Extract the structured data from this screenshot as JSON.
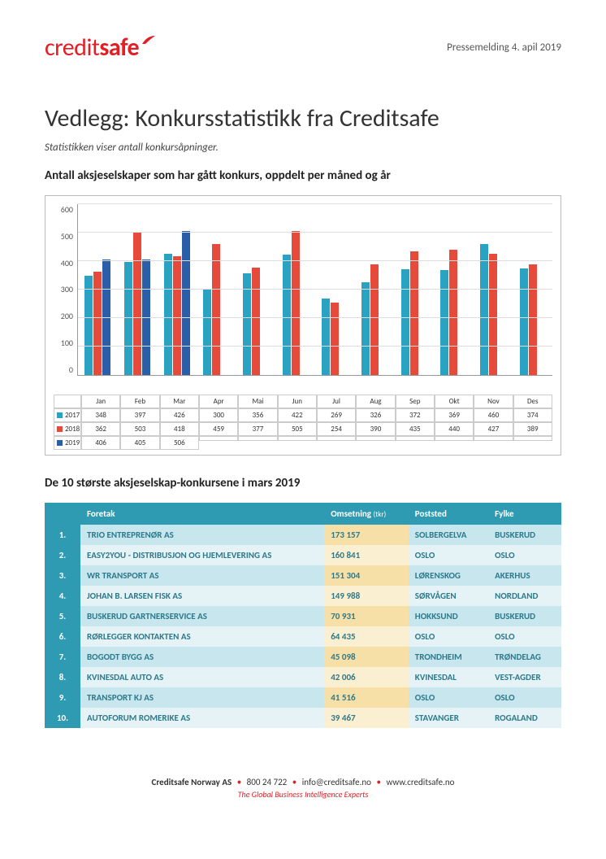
{
  "header": {
    "logo_a": "credit",
    "logo_b": "safe",
    "press_date": "Pressemelding 4. apil 2019"
  },
  "title": "Vedlegg: Konkursstatistikk fra Creditsafe",
  "subtitle": "Statistikken viser antall konkursåpninger.",
  "chart": {
    "heading": "Antall aksjeselskaper som har gått konkurs, oppdelt per måned og år",
    "type": "bar",
    "y_max": 600,
    "y_ticks": [
      600,
      500,
      400,
      300,
      200,
      100,
      0
    ],
    "months": [
      "Jan",
      "Feb",
      "Mar",
      "Apr",
      "Mai",
      "Jun",
      "Jul",
      "Aug",
      "Sep",
      "Okt",
      "Nov",
      "Des"
    ],
    "series": [
      {
        "name": "2017",
        "color": "#2aa3c2",
        "values": [
          348,
          397,
          426,
          300,
          356,
          422,
          269,
          326,
          372,
          369,
          460,
          374
        ]
      },
      {
        "name": "2018",
        "color": "#e64a3b",
        "values": [
          362,
          503,
          418,
          459,
          377,
          505,
          254,
          390,
          435,
          440,
          427,
          389
        ]
      },
      {
        "name": "2019",
        "color": "#2b5ea8",
        "values": [
          406,
          405,
          506,
          null,
          null,
          null,
          null,
          null,
          null,
          null,
          null,
          null
        ]
      }
    ],
    "grid_color": "#dddddd",
    "tick_font_size": 10
  },
  "companies": {
    "heading": "De 10 største aksjeselskap-konkursene i mars 2019",
    "columns": [
      "",
      "Foretak",
      "Omsetning",
      "Poststed",
      "Fylke"
    ],
    "omsetning_suffix": "(tkr)",
    "rows": [
      {
        "rank": "1.",
        "name": "TRIO ENTREPRENØR AS",
        "rev": "173 157",
        "post": "SOLBERGELVA",
        "fylke": "BUSKERUD"
      },
      {
        "rank": "2.",
        "name": "EASY2YOU - DISTRIBUSJON OG HJEMLEVERING AS",
        "rev": "160 841",
        "post": "OSLO",
        "fylke": "OSLO"
      },
      {
        "rank": "3.",
        "name": "WR TRANSPORT AS",
        "rev": "151 304",
        "post": "LØRENSKOG",
        "fylke": "AKERHUS"
      },
      {
        "rank": "4.",
        "name": "JOHAN B. LARSEN FISK AS",
        "rev": "149 988",
        "post": "SØRVÅGEN",
        "fylke": "NORDLAND"
      },
      {
        "rank": "5.",
        "name": "BUSKERUD GARTNERSERVICE AS",
        "rev": "70 931",
        "post": "HOKKSUND",
        "fylke": "BUSKERUD"
      },
      {
        "rank": "6.",
        "name": "RØRLEGGER KONTAKTEN AS",
        "rev": "64 435",
        "post": "OSLO",
        "fylke": "OSLO"
      },
      {
        "rank": "7.",
        "name": "BOGODT BYGG AS",
        "rev": "45 098",
        "post": "TRONDHEIM",
        "fylke": "TRØNDELAG"
      },
      {
        "rank": "8.",
        "name": "KVINESDAL AUTO AS",
        "rev": "42 006",
        "post": "KVINESDAL",
        "fylke": "VEST-AGDER"
      },
      {
        "rank": "9.",
        "name": "TRANSPORT KJ AS",
        "rev": "41 516",
        "post": "OSLO",
        "fylke": "OSLO"
      },
      {
        "rank": "10.",
        "name": "AUTOFORUM ROMERIKE AS",
        "rev": "39 467",
        "post": "STAVANGER",
        "fylke": "ROGALAND"
      }
    ],
    "header_bg": "#2e9bb3",
    "row_odd_bg": "#c7e6ee",
    "row_even_bg": "#e5f3f7",
    "rev_odd_bg": "#f6e0a8",
    "rev_even_bg": "#faefd0",
    "text_color": "#2e7a8a"
  },
  "footer": {
    "line1_a": "Creditsafe Norway AS",
    "line1_b": "800 24 722",
    "line1_c": "info@creditsafe.no",
    "line1_d": "www.creditsafe.no",
    "tagline": "The Global Business Intelligence Experts"
  }
}
